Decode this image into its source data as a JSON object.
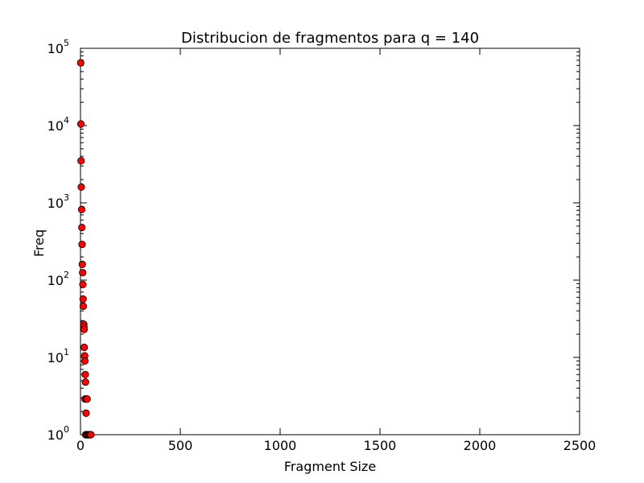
{
  "chart_data": {
    "type": "scatter",
    "title": "Distribucion de fragmentos para q = 140",
    "xlabel": "Fragment Size",
    "ylabel": "Freq",
    "xlim": [
      0,
      2500
    ],
    "ylim": [
      1,
      100000
    ],
    "yscale": "log",
    "grid": false,
    "xticks": [
      0,
      500,
      1000,
      1500,
      2000,
      2500
    ],
    "yticks": [
      {
        "base": "10",
        "exp": "0",
        "value": 1
      },
      {
        "base": "10",
        "exp": "1",
        "value": 10
      },
      {
        "base": "10",
        "exp": "2",
        "value": 100
      },
      {
        "base": "10",
        "exp": "3",
        "value": 1000
      },
      {
        "base": "10",
        "exp": "4",
        "value": 10000
      },
      {
        "base": "10",
        "exp": "5",
        "value": 100000
      }
    ],
    "marker_color": "#ff0000",
    "marker_edge": "#000000",
    "points": [
      {
        "x": 1,
        "y": 65000
      },
      {
        "x": 2,
        "y": 10500
      },
      {
        "x": 3,
        "y": 3500
      },
      {
        "x": 4,
        "y": 1600
      },
      {
        "x": 6,
        "y": 820
      },
      {
        "x": 7,
        "y": 480
      },
      {
        "x": 8,
        "y": 290
      },
      {
        "x": 9,
        "y": 160
      },
      {
        "x": 11,
        "y": 125
      },
      {
        "x": 12,
        "y": 88
      },
      {
        "x": 13,
        "y": 57
      },
      {
        "x": 14,
        "y": 46
      },
      {
        "x": 16,
        "y": 27
      },
      {
        "x": 17,
        "y": 25
      },
      {
        "x": 18,
        "y": 23
      },
      {
        "x": 19,
        "y": 13.5
      },
      {
        "x": 21,
        "y": 10.5
      },
      {
        "x": 22,
        "y": 9
      },
      {
        "x": 24,
        "y": 6
      },
      {
        "x": 25,
        "y": 4.8
      },
      {
        "x": 23,
        "y": 2.9
      },
      {
        "x": 29,
        "y": 2.9
      },
      {
        "x": 33,
        "y": 2.9
      },
      {
        "x": 28,
        "y": 1.9
      },
      {
        "x": 26,
        "y": 1
      },
      {
        "x": 31,
        "y": 1
      },
      {
        "x": 36,
        "y": 1
      },
      {
        "x": 40,
        "y": 1
      },
      {
        "x": 44,
        "y": 1
      },
      {
        "x": 48,
        "y": 1
      },
      {
        "x": 52,
        "y": 1
      }
    ]
  }
}
